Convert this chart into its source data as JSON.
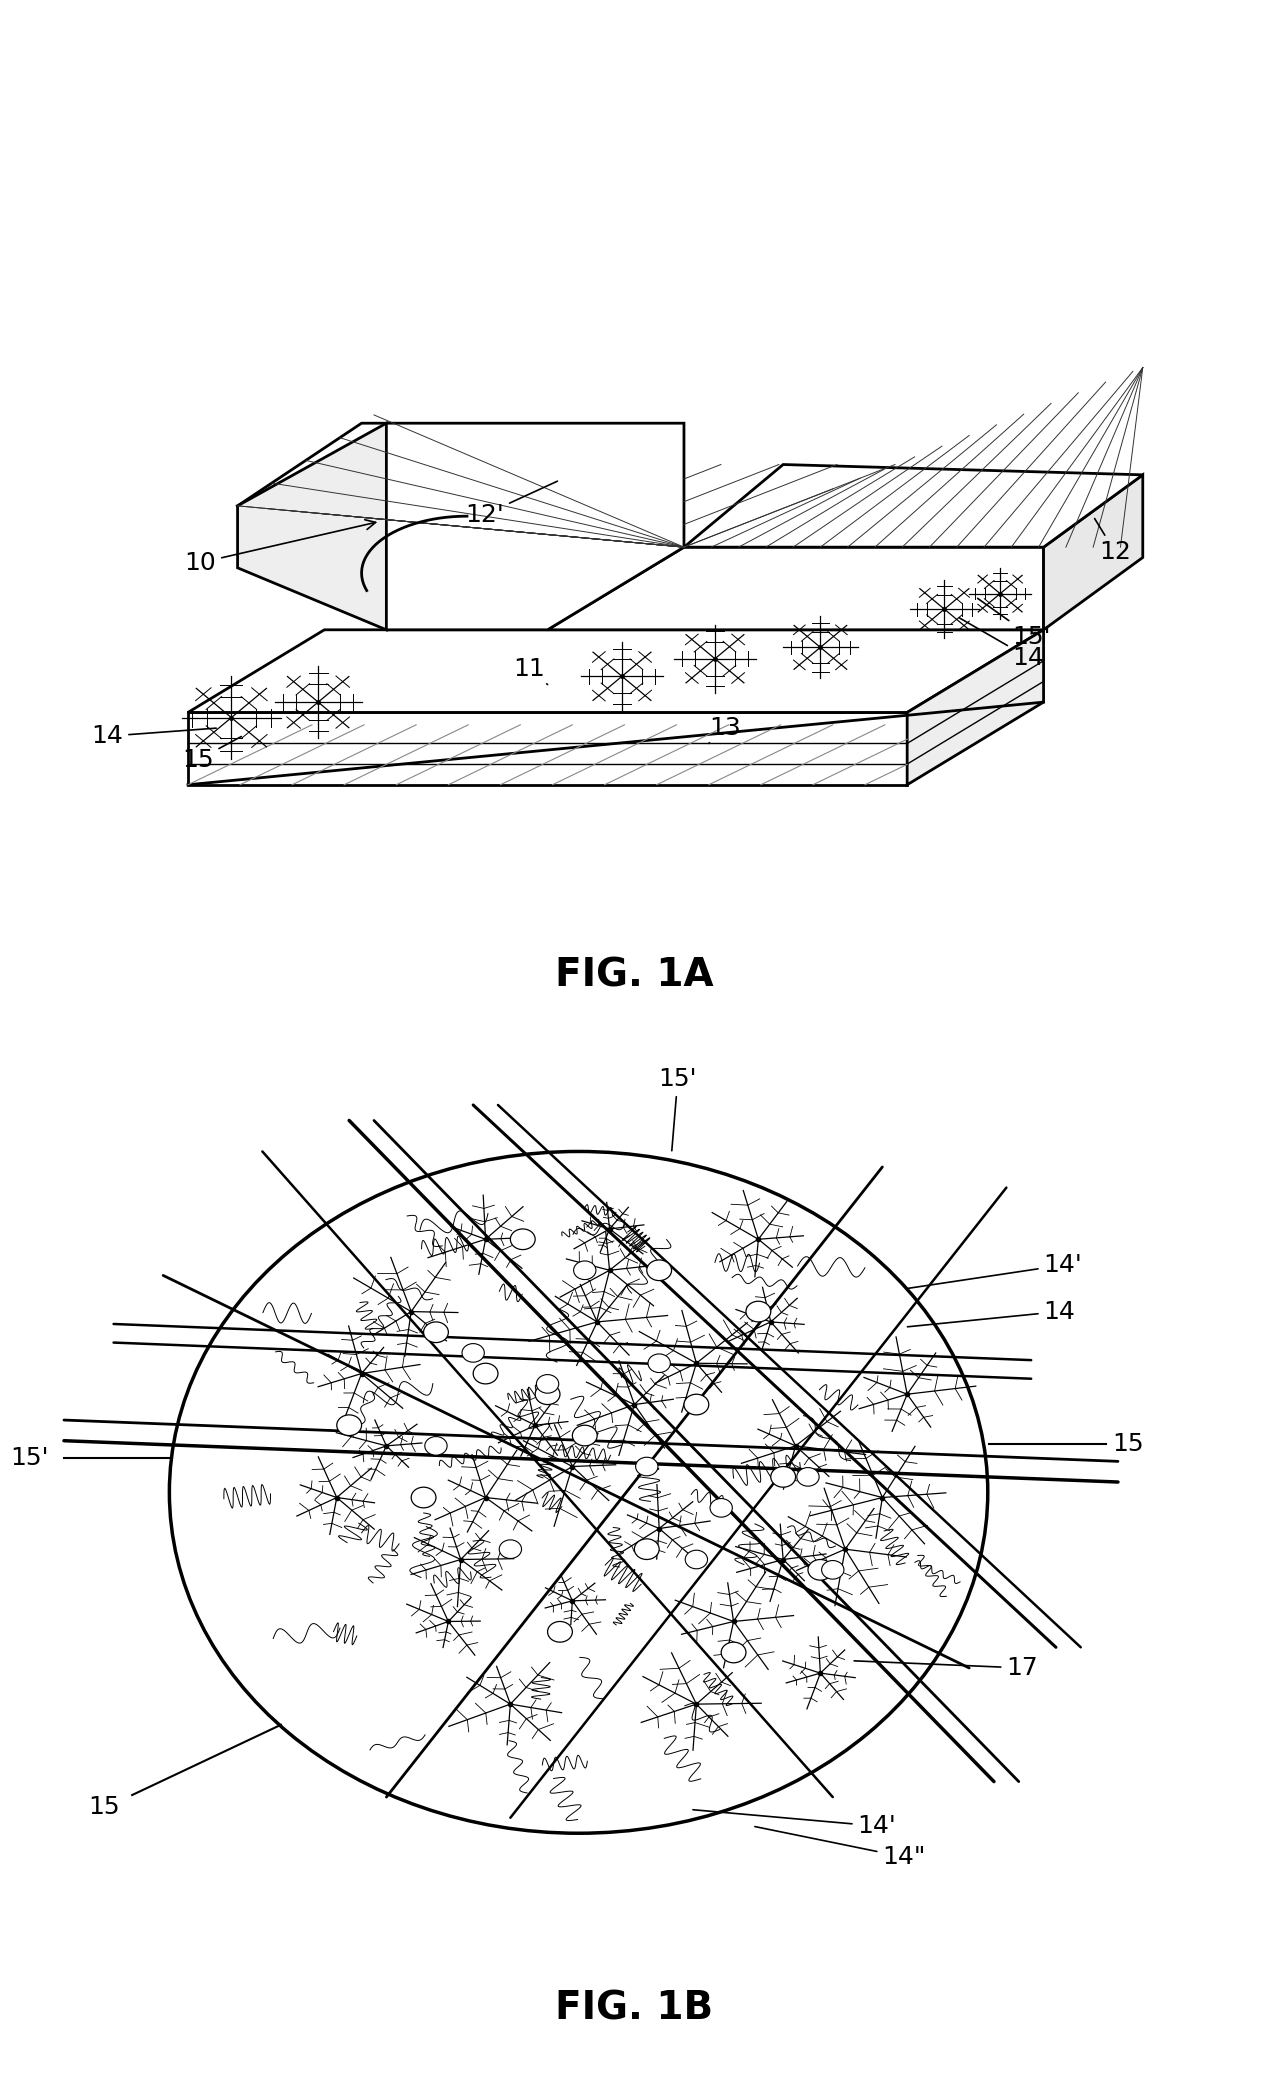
{
  "fig_width": 12.4,
  "fig_height": 20.66,
  "bg_color": "#ffffff",
  "line_color": "#000000",
  "fig1a_label": "FIG. 1A",
  "fig1b_label": "FIG. 1B",
  "fig1a_title_fontsize": 28,
  "fig1b_title_fontsize": 28,
  "annotation_fontsize": 18
}
